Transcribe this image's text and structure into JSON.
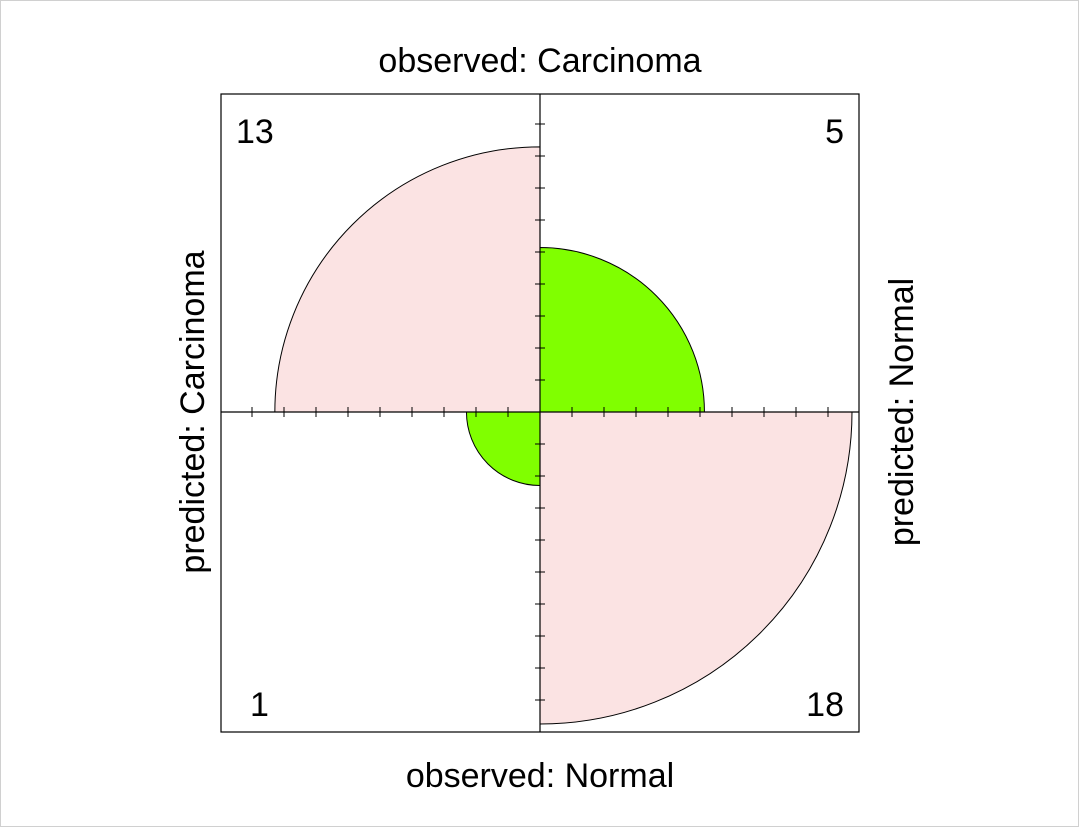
{
  "chart_data": {
    "type": "fourfold",
    "title": "",
    "top_label": "observed: Carcinoma",
    "bottom_label": "observed: Normal",
    "left_label": "predicted: Carcinoma",
    "right_label": "predicted: Normal",
    "cells": [
      {
        "observed": "Carcinoma",
        "predicted": "Carcinoma",
        "count": 13,
        "label": "13",
        "quadrant": "top-left"
      },
      {
        "observed": "Carcinoma",
        "predicted": "Normal",
        "count": 5,
        "label": "5",
        "quadrant": "top-right"
      },
      {
        "observed": "Normal",
        "predicted": "Carcinoma",
        "count": 1,
        "label": "1",
        "quadrant": "bottom-left"
      },
      {
        "observed": "Normal",
        "predicted": "Normal",
        "count": 18,
        "label": "18",
        "quadrant": "bottom-right"
      }
    ],
    "colors": {
      "positive": "#fbe3e3",
      "negative": "#80ff00",
      "outline": "#000000",
      "frame": "#000000",
      "border": "#d0d0d0"
    }
  }
}
